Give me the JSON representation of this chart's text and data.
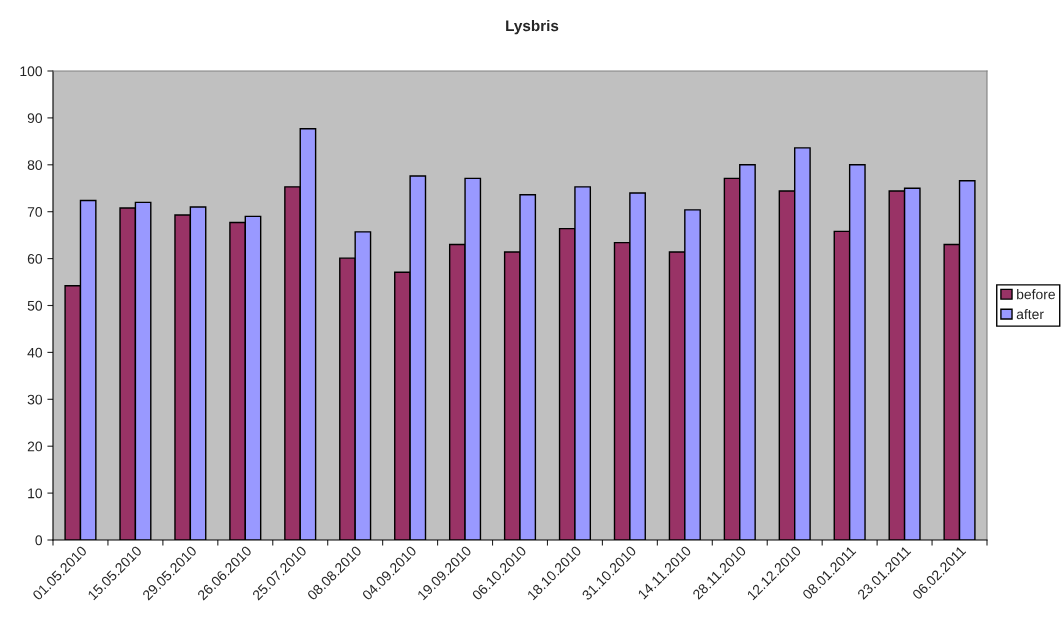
{
  "chart_data": {
    "type": "bar",
    "title": "Lysbris",
    "categories": [
      "01.05.2010",
      "15.05.2010",
      "29.05.2010",
      "26.06.2010",
      "25.07.2010",
      "08.08.2010",
      "04.09.2010",
      "19.09.2010",
      "06.10.2010",
      "18.10.2010",
      "31.10.2010",
      "14.11.2010",
      "28.11.2010",
      "12.12.2010",
      "08.01.2011",
      "23.01.2011",
      "06.02.2011"
    ],
    "series": [
      {
        "name": "before",
        "color": "#993366",
        "values": [
          54.2,
          70.8,
          69.3,
          67.7,
          75.3,
          60.1,
          57.1,
          63.0,
          61.4,
          66.4,
          63.4,
          61.4,
          77.1,
          74.4,
          65.8,
          74.4,
          63.0
        ]
      },
      {
        "name": "after",
        "color": "#9999ff",
        "values": [
          72.4,
          72.0,
          71.0,
          69.0,
          87.7,
          65.7,
          77.6,
          77.1,
          73.6,
          75.3,
          74.0,
          70.4,
          80.0,
          83.6,
          80.0,
          75.0,
          76.6
        ]
      }
    ],
    "ylim": [
      0,
      100
    ],
    "yticks": [
      0,
      10,
      20,
      30,
      40,
      50,
      60,
      70,
      80,
      90,
      100
    ],
    "grid": false,
    "legend": "right"
  }
}
